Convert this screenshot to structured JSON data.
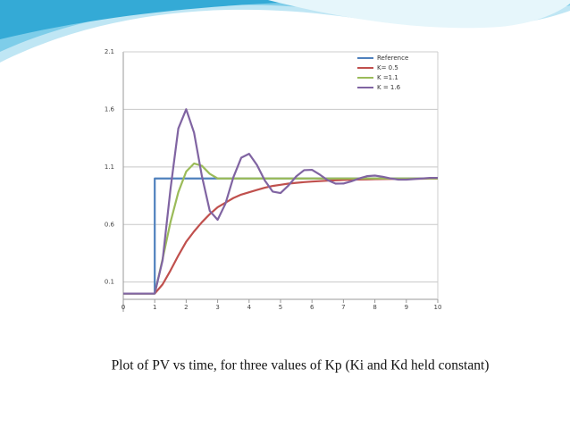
{
  "chart_data": {
    "type": "line",
    "caption": "Plot of PV vs time, for three values of Kp (Ki and Kd held constant)",
    "x": [
      0,
      1,
      1.25,
      1.5,
      1.75,
      2,
      2.25,
      2.5,
      2.75,
      3,
      3.25,
      3.5,
      3.75,
      4,
      4.25,
      4.5,
      4.75,
      5,
      5.25,
      5.5,
      5.75,
      6,
      6.25,
      6.5,
      6.75,
      7,
      7.25,
      7.5,
      7.75,
      8,
      8.25,
      8.5,
      8.75,
      9,
      9.25,
      9.5,
      9.75,
      10
    ],
    "series": [
      {
        "name": "Reference",
        "color": "#4f81bd",
        "x": [
          0,
          1,
          1,
          10
        ],
        "values": [
          0,
          0,
          1,
          1
        ]
      },
      {
        "name": "K= 0.5",
        "color": "#c0504d",
        "values": [
          0,
          0,
          0.08,
          0.2,
          0.33,
          0.45,
          0.54,
          0.62,
          0.69,
          0.75,
          0.79,
          0.83,
          0.86,
          0.88,
          0.9,
          0.92,
          0.935,
          0.945,
          0.955,
          0.962,
          0.968,
          0.973,
          0.977,
          0.981,
          0.984,
          0.987,
          0.989,
          0.991,
          0.992,
          0.994,
          0.995,
          0.996,
          0.997,
          0.997,
          0.998,
          0.998,
          0.999,
          0.999
        ]
      },
      {
        "name": "K =1.1",
        "color": "#9bbb59",
        "values": [
          0,
          0,
          0.3,
          0.62,
          0.88,
          1.06,
          1.13,
          1.11,
          1.04,
          1.0,
          1.0,
          1.0,
          1.0,
          1.0,
          1.0,
          1.0,
          1.0,
          1.0,
          1.0,
          1.0,
          1.0,
          1.0,
          1.0,
          1.0,
          1.0,
          1.0,
          1.0,
          1.0,
          1.0,
          1.0,
          1.0,
          1.0,
          1.0,
          1.0,
          1.0,
          1.0,
          1.0,
          1.0
        ]
      },
      {
        "name": "K = 1.6",
        "color": "#8064a2",
        "values": [
          0,
          0,
          0.29,
          0.906,
          1.434,
          1.601,
          1.398,
          1.02,
          0.718,
          0.641,
          0.782,
          1.01,
          1.18,
          1.214,
          1.117,
          0.982,
          0.886,
          0.873,
          0.938,
          1.018,
          1.072,
          1.075,
          1.033,
          0.985,
          0.955,
          0.956,
          0.975,
          1.0,
          1.02,
          1.025,
          1.015,
          1.0,
          0.99,
          0.99,
          0.995,
          1.0,
          1.005,
          1.005
        ]
      }
    ],
    "xlim": [
      0,
      10
    ],
    "xticks": [
      0,
      1,
      2,
      3,
      4,
      5,
      6,
      7,
      8,
      9,
      10
    ],
    "ylim": [
      -0.05,
      2.1
    ],
    "yticks": [
      0.1,
      0.6,
      1.1,
      1.6,
      2.1
    ],
    "grid": true,
    "legend": "upper right"
  }
}
